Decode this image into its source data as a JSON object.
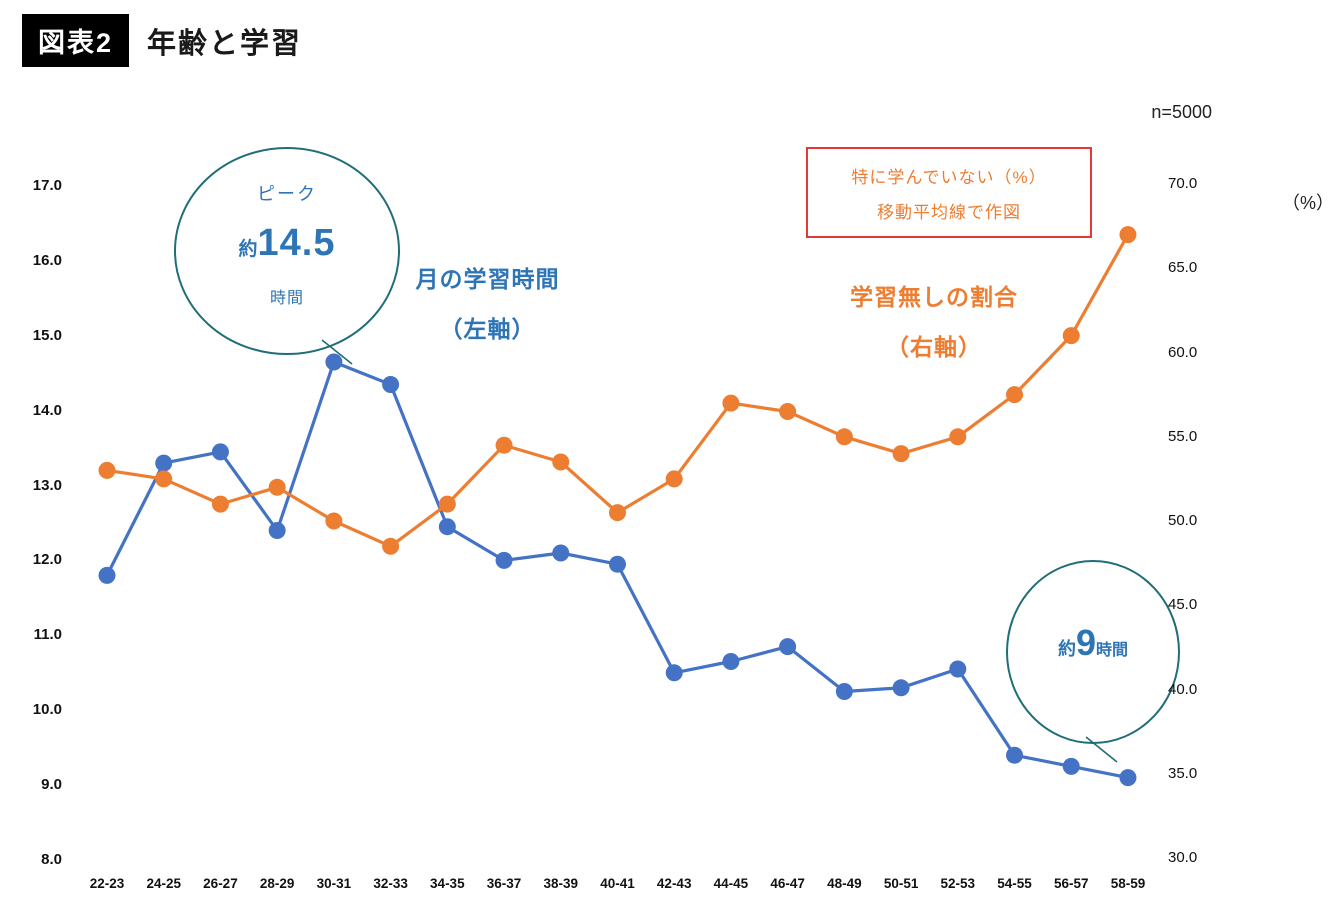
{
  "header": {
    "badge": "図表2",
    "title": "年齢と学習"
  },
  "meta": {
    "sample_size": "n=5000",
    "right_axis_unit": "（%）"
  },
  "note_box": {
    "line1": "特に学んでいない（%）",
    "line2": "移動平均線で作図",
    "border_color": "#e53935",
    "text_color": "#ED7D31"
  },
  "series_labels": {
    "blue": {
      "line1": "月の学習時間",
      "line2": "（左軸）",
      "color": "#2E75B6"
    },
    "orange": {
      "line1": "学習無しの割合",
      "line2": "（右軸）",
      "color": "#ED7D31"
    }
  },
  "annotations": {
    "circle_color": "#1F6E78",
    "text_color": "#2E75B6",
    "peak": {
      "label": "ピーク",
      "prefix": "約",
      "value": "14.5",
      "suffix": "時間"
    },
    "end": {
      "prefix": "約",
      "value": "9",
      "suffix": "時間"
    }
  },
  "chart_data": {
    "type": "line",
    "title": "年齢と学習",
    "grid": false,
    "legend": "none",
    "categories": [
      "22-23",
      "24-25",
      "26-27",
      "28-29",
      "30-31",
      "32-33",
      "34-35",
      "36-37",
      "38-39",
      "40-41",
      "42-43",
      "44-45",
      "46-47",
      "48-49",
      "50-51",
      "52-53",
      "54-55",
      "56-57",
      "58-59"
    ],
    "series": [
      {
        "id": "study_hours",
        "name": "月の学習時間（左軸）",
        "axis": "left",
        "color": "#4472C4",
        "values": [
          11.8,
          13.3,
          13.45,
          12.4,
          14.65,
          14.35,
          12.45,
          12.0,
          12.1,
          11.95,
          10.5,
          10.65,
          10.85,
          10.25,
          10.3,
          10.55,
          9.4,
          9.25,
          9.1
        ]
      },
      {
        "id": "no_learning_pct",
        "name": "学習無しの割合（右軸）",
        "axis": "right",
        "color": "#ED7D31",
        "values": [
          53.0,
          52.5,
          51.0,
          52.0,
          50.0,
          48.5,
          51.0,
          54.5,
          53.5,
          50.5,
          52.5,
          57.0,
          56.5,
          55.0,
          54.0,
          55.0,
          57.5,
          61.0,
          67.0
        ]
      }
    ],
    "left_axis": {
      "min": 8,
      "max": 17,
      "ticks": [
        "17.0",
        "16.0",
        "15.0",
        "14.0",
        "13.0",
        "12.0",
        "11.0",
        "10.0",
        "9.0",
        "8.0"
      ]
    },
    "right_axis": {
      "min": 30,
      "max": 70,
      "ticks": [
        "70.0",
        "65.0",
        "60.0",
        "55.0",
        "50.0",
        "45.0",
        "40.0",
        "35.0",
        "30.0"
      ],
      "unit": "（%）"
    }
  }
}
